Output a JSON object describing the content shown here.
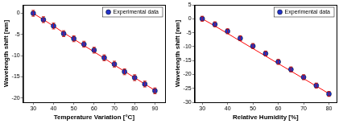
{
  "chart_data": [
    {
      "type": "scatter",
      "x_label": "Temperature Variation [°C]",
      "y_label": "Wavelength shift [nm]",
      "xlim": [
        25,
        95
      ],
      "xticks": [
        30,
        40,
        50,
        60,
        70,
        80,
        90
      ],
      "ylim": [
        -21,
        2
      ],
      "yticks": [
        -20,
        -15,
        -10,
        -5,
        0
      ],
      "grid": false,
      "legend": "upper right",
      "x": [
        30,
        35,
        40,
        45,
        50,
        55,
        60,
        65,
        70,
        75,
        80,
        85,
        90
      ],
      "series": [
        {
          "name": "Experimental data",
          "type": "scatter",
          "marker": "circle",
          "color": "#2233cc",
          "values": [
            0,
            -1.5,
            -3,
            -4.8,
            -6,
            -7.3,
            -8.7,
            -10.5,
            -12,
            -13.8,
            -15.2,
            -16.7,
            -18.3
          ],
          "errors": [
            0.7,
            0.7,
            0.7,
            0.7,
            0.7,
            0.7,
            0.7,
            0.7,
            0.7,
            0.7,
            0.7,
            0.7,
            0.7
          ]
        },
        {
          "type": "line",
          "line_style": "solid",
          "color": "#ff0000",
          "values": [
            0,
            -1.5,
            -3.0,
            -4.6,
            -6.1,
            -7.6,
            -9.1,
            -10.6,
            -12.2,
            -13.7,
            -15.2,
            -16.7,
            -18.2
          ]
        }
      ]
    },
    {
      "type": "scatter",
      "x_label": "Relative Humidity [%]",
      "y_label": "Wavelength shift [nm]",
      "xlim": [
        27,
        83
      ],
      "xticks": [
        30,
        40,
        50,
        60,
        70,
        80
      ],
      "ylim": [
        -30,
        5
      ],
      "yticks": [
        -30,
        -25,
        -20,
        -15,
        -10,
        -5,
        0,
        5
      ],
      "grid": false,
      "legend": "upper right",
      "x": [
        30,
        35,
        40,
        45,
        50,
        55,
        60,
        65,
        70,
        75,
        80
      ],
      "series": [
        {
          "name": "Experimental data",
          "type": "scatter",
          "marker": "circle",
          "color": "#2233cc",
          "values": [
            0,
            -2,
            -4.5,
            -7,
            -9.8,
            -12.5,
            -15.5,
            -18.2,
            -21,
            -24,
            -27
          ],
          "errors": [
            0.9,
            0.9,
            0.9,
            0.9,
            0.9,
            0.9,
            0.9,
            0.9,
            0.9,
            0.9,
            0.9
          ]
        },
        {
          "type": "line",
          "line_style": "solid",
          "color": "#ff0000",
          "values": [
            0,
            -2.6,
            -5.3,
            -8.0,
            -10.7,
            -13.4,
            -16.1,
            -18.8,
            -21.5,
            -24.2,
            -26.9
          ]
        }
      ]
    }
  ]
}
